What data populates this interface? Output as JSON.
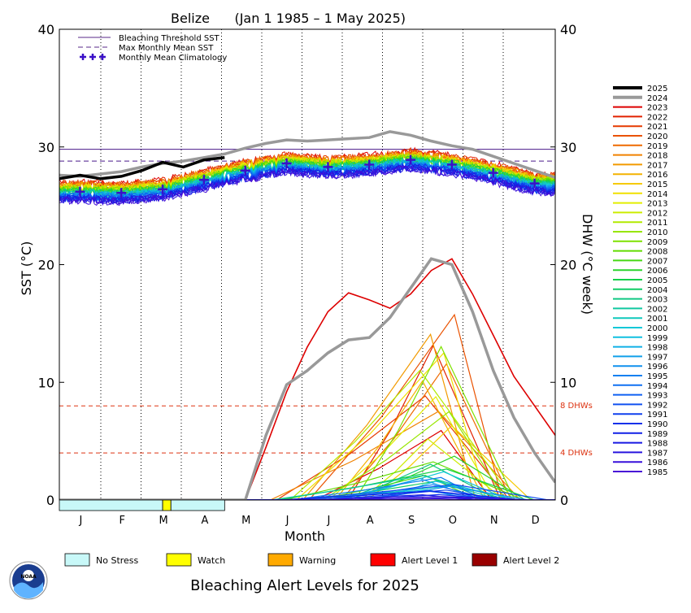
{
  "chart_data": {
    "type": "line",
    "title": "Belize      (Jan 1 1985 – 1 May 2025)",
    "xlabel": "Month",
    "ylabel_left": "SST (°C)",
    "ylabel_right": "DHW (°C week)",
    "ylim": [
      0,
      40
    ],
    "yticks": [
      "0",
      "10",
      "20",
      "30",
      "40"
    ],
    "months": [
      "J",
      "F",
      "M",
      "A",
      "M",
      "J",
      "J",
      "A",
      "S",
      "O",
      "N",
      "D"
    ],
    "bleaching_threshold_sst": 29.8,
    "max_monthly_mean_sst": 28.8,
    "dhw_reference_lines": [
      {
        "value": 8,
        "label": "8 DHWs"
      },
      {
        "value": 4,
        "label": "4 DHWs"
      }
    ],
    "monthly_mean_climatology": [
      26.2,
      26.1,
      26.4,
      27.2,
      28.0,
      28.6,
      28.3,
      28.5,
      28.9,
      28.5,
      27.8,
      26.9
    ],
    "legend_top": [
      "Bleaching Threshold SST",
      "Max Monthly Mean SST",
      "Monthly Mean Climatology"
    ],
    "year_legend": [
      "2025",
      "2024",
      "2023",
      "2022",
      "2021",
      "2020",
      "2019",
      "2018",
      "2017",
      "2016",
      "2015",
      "2014",
      "2013",
      "2012",
      "2011",
      "2010",
      "2009",
      "2008",
      "2007",
      "2006",
      "2005",
      "2004",
      "2003",
      "2002",
      "2001",
      "2000",
      "1999",
      "1998",
      "1997",
      "1996",
      "1995",
      "1994",
      "1993",
      "1992",
      "1991",
      "1990",
      "1989",
      "1988",
      "1987",
      "1986",
      "1985"
    ],
    "year_colors": [
      "#000000",
      "#999999",
      "#dd0000",
      "#e22200",
      "#e63a00",
      "#ea5200",
      "#ee6a00",
      "#f08200",
      "#f29a00",
      "#f4b200",
      "#f6ca00",
      "#f0e000",
      "#e2ee00",
      "#ccec00",
      "#b2ea00",
      "#98e600",
      "#7ee200",
      "#62dc00",
      "#46d814",
      "#2ad42c",
      "#14d048",
      "#10cc66",
      "#10c884",
      "#10c8a0",
      "#10c8bc",
      "#10c8d8",
      "#10c0e0",
      "#10b0e6",
      "#10a0ea",
      "#1090ee",
      "#1080f0",
      "#1070f2",
      "#1060f2",
      "#1050f0",
      "#1040ee",
      "#1030ea",
      "#1020e6",
      "#1818e2",
      "#2814de",
      "#3810da",
      "#4810d6"
    ],
    "sst_2025": {
      "month_pos": [
        0.0,
        0.5,
        1.0,
        1.5,
        2.0,
        2.5,
        3.0,
        3.5,
        4.0
      ],
      "values": [
        27.3,
        27.6,
        27.3,
        27.5,
        28.0,
        28.7,
        28.3,
        28.9,
        29.1
      ]
    },
    "sst_2024": {
      "month_pos": [
        0,
        0.5,
        1,
        1.5,
        2,
        2.5,
        3,
        3.5,
        4,
        4.5,
        5,
        5.5,
        6,
        6.5,
        7,
        7.5,
        8,
        8.5,
        9,
        9.5,
        10,
        10.5,
        11,
        11.5,
        12
      ],
      "values": [
        27.6,
        27.5,
        27.7,
        27.9,
        28.3,
        28.6,
        28.8,
        29.1,
        29.4,
        29.9,
        30.3,
        30.6,
        30.5,
        30.6,
        30.7,
        30.8,
        31.3,
        31.0,
        30.5,
        30.1,
        29.8,
        29.2,
        28.6,
        28.0,
        27.4
      ]
    },
    "dhw_2024": {
      "month_pos": [
        0,
        4.5,
        5,
        5.5,
        6,
        6.5,
        7,
        7.5,
        8,
        8.5,
        9,
        9.5,
        10,
        10.5,
        11,
        11.5,
        12
      ],
      "values": [
        0,
        0,
        5.5,
        9.8,
        11.0,
        12.5,
        13.6,
        13.8,
        15.5,
        18.0,
        20.5,
        20.0,
        16.0,
        11.0,
        7.0,
        4.0,
        1.5
      ]
    },
    "dhw_2023": {
      "month_pos": [
        4.5,
        5,
        5.5,
        6,
        6.5,
        7,
        7.5,
        8,
        8.5,
        9,
        9.5,
        10,
        10.5,
        11,
        11.5,
        12
      ],
      "values": [
        0,
        4.5,
        9.2,
        13.0,
        16.0,
        17.6,
        17.0,
        16.3,
        17.5,
        19.5,
        20.5,
        17.5,
        14.0,
        10.5,
        8.0,
        5.5
      ]
    },
    "bleaching_alert_2025": [
      {
        "month_pos": [
          0,
          2.5
        ],
        "level": "No Stress"
      },
      {
        "month_pos": [
          2.5,
          2.7
        ],
        "level": "Watch"
      },
      {
        "month_pos": [
          2.7,
          4.0
        ],
        "level": "No Stress"
      }
    ],
    "alert_legend": [
      {
        "label": "No Stress",
        "color": "#c8f8f8"
      },
      {
        "label": "Watch",
        "color": "#ffff00"
      },
      {
        "label": "Warning",
        "color": "#ffaa00"
      },
      {
        "label": "Alert Level 1",
        "color": "#ff0000"
      },
      {
        "label": "Alert Level 2",
        "color": "#990000"
      }
    ],
    "footer_title": "Bleaching Alert Levels for 2025"
  },
  "logo_text": "NOAA"
}
